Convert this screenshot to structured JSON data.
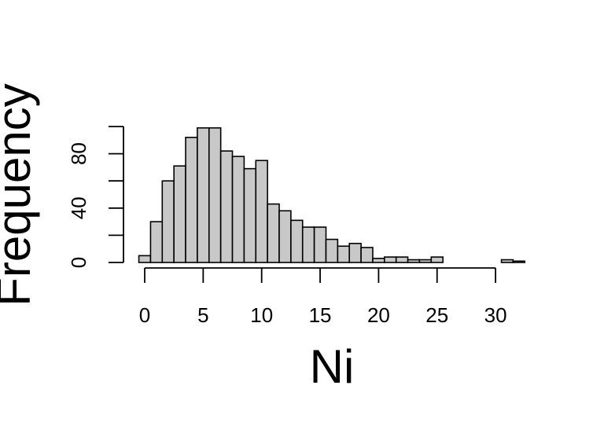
{
  "chart_data": {
    "type": "bar",
    "title": "",
    "xlabel": "Ni",
    "ylabel": "Frequency",
    "bin_width": 1,
    "bin_start": -0.5,
    "x_ticks": [
      "0",
      "5",
      "10",
      "15",
      "20",
      "25",
      "30"
    ],
    "y_ticks": [
      "0",
      "40",
      "80"
    ],
    "xlim": [
      -0.5,
      32.5
    ],
    "ylim": [
      0,
      100
    ],
    "values": [
      5,
      30,
      60,
      71,
      92,
      99,
      99,
      82,
      78,
      69,
      75,
      43,
      38,
      31,
      26,
      26,
      17,
      12,
      14,
      11,
      3,
      4,
      4,
      2,
      2,
      4,
      0,
      0,
      0,
      0,
      0,
      2,
      1
    ],
    "bar_color": "#c8c8c8",
    "grid": false,
    "legend": "none"
  }
}
